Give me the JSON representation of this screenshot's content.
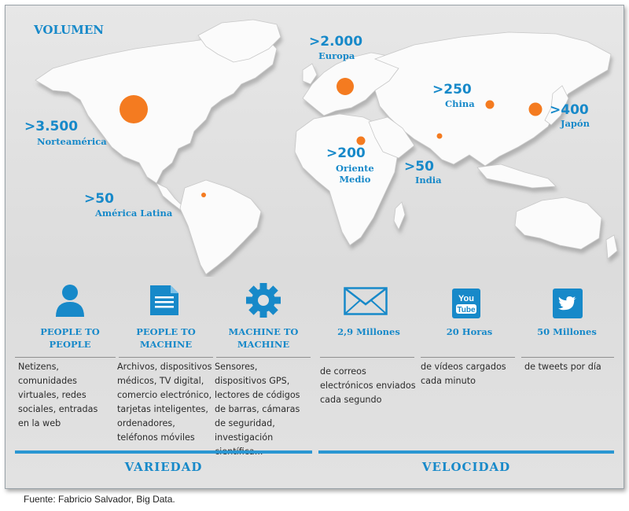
{
  "title": "VOLUMEN",
  "regions": [
    {
      "id": "europa",
      "value": ">2.000",
      "name": "Europa"
    },
    {
      "id": "china",
      "value": ">250",
      "name": "China"
    },
    {
      "id": "japon",
      "value": ">400",
      "name": "Japón"
    },
    {
      "id": "norteamerica",
      "value": ">3.500",
      "name": "Norteamérica"
    },
    {
      "id": "oriente",
      "value": ">200",
      "name": "Oriente\nMedio"
    },
    {
      "id": "india",
      "value": ">50",
      "name": "India"
    },
    {
      "id": "latam",
      "value": ">50",
      "name": "América Latina"
    }
  ],
  "variedad": {
    "label": "VARIEDAD",
    "columns": [
      {
        "icon": "person-icon",
        "heading": "PEOPLE TO\nPEOPLE",
        "text": "Netizens, comunidades virtuales, redes sociales, entradas en la web"
      },
      {
        "icon": "document-icon",
        "heading": "PEOPLE TO\nMACHINE",
        "text": "Archivos, dispositivos médicos, TV digital, comercio electrónico, tarjetas inteligentes, ordenadores, teléfonos móviles"
      },
      {
        "icon": "gear-icon",
        "heading": "MACHINE TO\nMACHINE",
        "text": "Sensores, dispositivos GPS, lectores de códigos de barras, cámaras de seguridad, investigación científica..."
      }
    ]
  },
  "velocidad": {
    "label": "VELOCIDAD",
    "columns": [
      {
        "icon": "envelope-icon",
        "heading": "2,9 Millones",
        "text": "de correos electrónicos enviados cada segundo"
      },
      {
        "icon": "youtube-icon",
        "heading": "20 Horas",
        "text": "de vídeos cargados cada minuto"
      },
      {
        "icon": "twitter-icon",
        "heading": "50 Millones",
        "text": "de tweets por día"
      }
    ]
  },
  "youtube_text": {
    "top": "You",
    "bottom": "Tube"
  },
  "source": "Fuente: Fabricio Salvador, Big Data.",
  "colors": {
    "accent": "#1789c9",
    "dot": "#f47b20",
    "land": "#fbfbfb",
    "background": "#dedede"
  }
}
